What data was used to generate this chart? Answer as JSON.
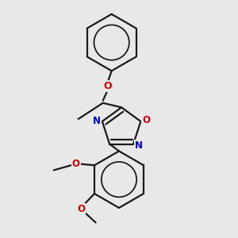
{
  "background_color": "#e8e8e8",
  "bond_color": "#1a1a1a",
  "N_color": "#0000cc",
  "O_color": "#cc0000",
  "line_width": 1.6,
  "figsize": [
    3.0,
    3.0
  ],
  "dpi": 100,
  "xlim": [
    0.05,
    0.95
  ],
  "ylim": [
    0.02,
    0.98
  ]
}
